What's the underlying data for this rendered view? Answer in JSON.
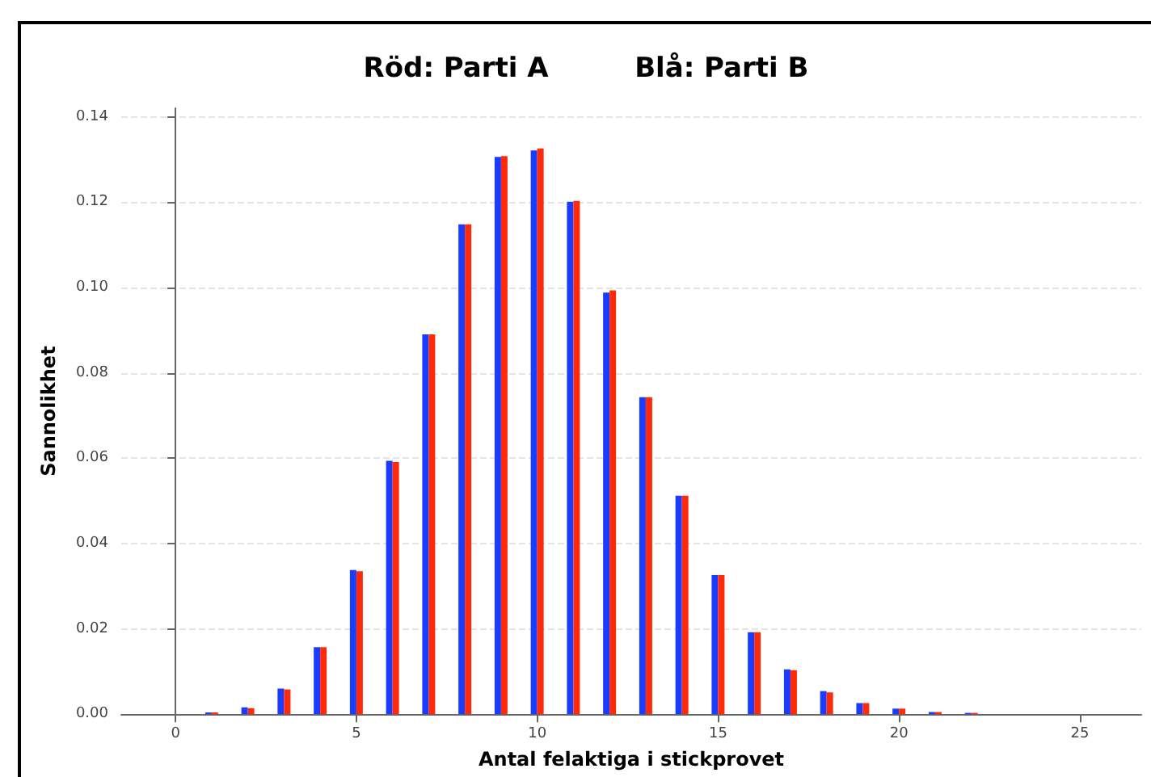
{
  "chart_data": {
    "type": "bar",
    "title": "Röd: Parti A         Blå: Parti B",
    "xlabel": "Antal felaktiga i stickprovet",
    "ylabel": "Sannolikhet",
    "x": [
      0,
      1,
      2,
      3,
      4,
      5,
      6,
      7,
      8,
      9,
      10,
      11,
      12,
      13,
      14,
      15,
      16,
      17,
      18,
      19,
      20,
      21,
      22
    ],
    "series": [
      {
        "color": "#1a3cff",
        "values": [
          0,
          0.0004,
          0.0016,
          0.006,
          0.0157,
          0.0338,
          0.0594,
          0.089,
          0.1148,
          0.1306,
          0.1321,
          0.1201,
          0.0988,
          0.0743,
          0.0512,
          0.0326,
          0.0192,
          0.0105,
          0.0054,
          0.0026,
          0.0013,
          0.0005,
          0.0003
        ]
      },
      {
        "color": "#ff2a0a",
        "values": [
          0,
          0.0004,
          0.0014,
          0.0058,
          0.0157,
          0.0335,
          0.0591,
          0.089,
          0.1148,
          0.1308,
          0.1326,
          0.1203,
          0.0993,
          0.0743,
          0.0512,
          0.0326,
          0.0192,
          0.0103,
          0.0051,
          0.0026,
          0.0013,
          0.0005,
          0.0003
        ]
      }
    ],
    "xlim": [
      -1.5,
      26.7
    ],
    "xticks": [
      0,
      5,
      10,
      15,
      20,
      25
    ],
    "ylim": [
      0,
      0.142
    ],
    "yticks": [
      {
        "value": 0,
        "label": "0.00"
      },
      {
        "value": 0.02,
        "label": "0.02"
      },
      {
        "value": 0.04,
        "label": "0.04"
      },
      {
        "value": 0.06,
        "label": "0.06"
      },
      {
        "value": 0.08,
        "label": "0.08"
      },
      {
        "value": 0.1,
        "label": "0.10"
      },
      {
        "value": 0.12,
        "label": "0.12"
      },
      {
        "value": 0.14,
        "label": "0.14"
      }
    ],
    "grid": "y"
  }
}
